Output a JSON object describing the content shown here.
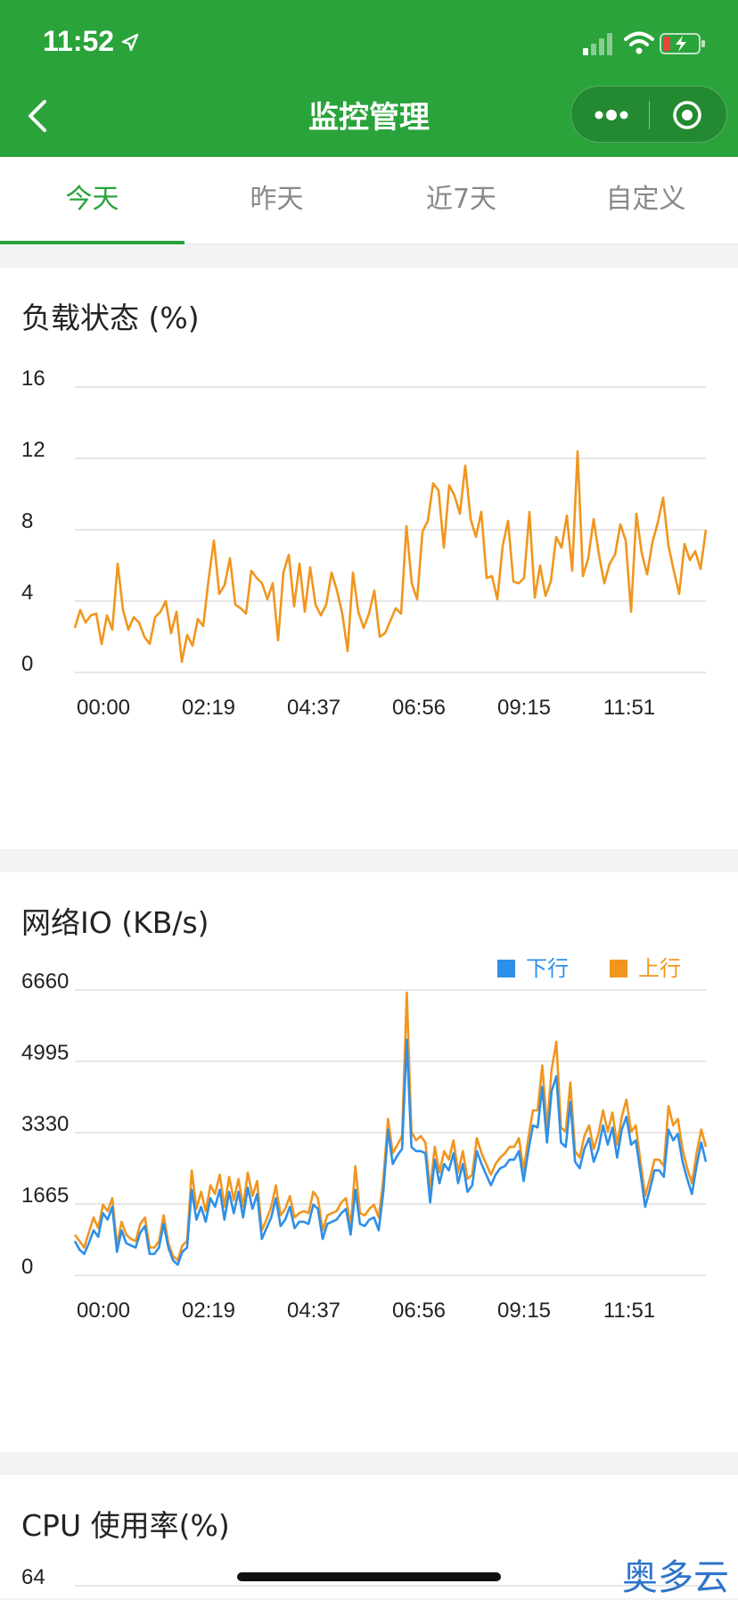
{
  "status_bar": {
    "time": "11:52"
  },
  "nav": {
    "title": "监控管理",
    "more_icon": "more-dots-icon",
    "close_icon": "target-icon"
  },
  "tabs": [
    {
      "label": "今天",
      "active": true
    },
    {
      "label": "昨天",
      "active": false
    },
    {
      "label": "近7天",
      "active": false
    },
    {
      "label": "自定义",
      "active": false
    }
  ],
  "colors": {
    "brand": "#2aa33a",
    "orange": "#f0961e",
    "blue": "#2e8fe8"
  },
  "cards": {
    "load": {
      "title": "负载状态 (%)"
    },
    "net": {
      "title": "网络IO (KB/s)",
      "legend_down": "下行",
      "legend_up": "上行"
    },
    "cpu": {
      "title": "CPU 使用率(%)"
    }
  },
  "watermark": "奥多云",
  "chart_data": [
    {
      "type": "line",
      "ylim": [
        0,
        16
      ],
      "yticks": [
        0,
        4,
        8,
        12,
        16
      ],
      "xtick_labels": [
        "00:00",
        "02:19",
        "04:37",
        "06:56",
        "09:15",
        "11:51"
      ],
      "series": [
        {
          "color": "#f0961e",
          "values": [
            2.5,
            3.5,
            2.8,
            3.2,
            3.3,
            1.6,
            3.2,
            2.4,
            6.1,
            3.5,
            2.4,
            3.1,
            2.8,
            2.0,
            1.6,
            3.1,
            3.4,
            4.0,
            2.2,
            3.4,
            0.6,
            2.1,
            1.5,
            3.0,
            2.6,
            5.2,
            7.4,
            4.4,
            4.9,
            6.4,
            3.8,
            3.6,
            3.3,
            5.7,
            5.3,
            5.0,
            4.1,
            5.0,
            1.8,
            5.6,
            6.6,
            3.7,
            6.1,
            3.4,
            5.9,
            3.8,
            3.2,
            3.8,
            5.6,
            4.6,
            3.3,
            1.2,
            5.6,
            3.4,
            2.5,
            3.3,
            4.6,
            2.0,
            2.2,
            2.9,
            3.6,
            3.3,
            8.2,
            5.0,
            4.1,
            7.9,
            8.5,
            10.6,
            10.2,
            7.0,
            10.5,
            9.9,
            8.9,
            11.6,
            8.6,
            7.6,
            9.0,
            5.3,
            5.4,
            4.1,
            7.1,
            8.5,
            5.1,
            5.0,
            5.3,
            9.0,
            4.2,
            6.0,
            4.3,
            5.1,
            7.6,
            7.0,
            8.8,
            5.7,
            12.4,
            5.4,
            6.4,
            8.6,
            6.6,
            5.0,
            6.1,
            6.6,
            8.3,
            7.4,
            3.4,
            8.9,
            6.7,
            5.5,
            7.3,
            8.4,
            9.8,
            7.1,
            5.7,
            4.4,
            7.2,
            6.3,
            6.8,
            5.8,
            8.0
          ]
        }
      ]
    },
    {
      "type": "line",
      "ylim": [
        0,
        6660
      ],
      "yticks": [
        0,
        1665,
        3330,
        4995,
        6660
      ],
      "xtick_labels": [
        "00:00",
        "02:19",
        "04:37",
        "06:56",
        "09:15",
        "11:51"
      ],
      "series": [
        {
          "name": "下行",
          "color": "#2e8fe8",
          "values": [
            800,
            600,
            500,
            750,
            1050,
            900,
            1450,
            1300,
            1600,
            550,
            1050,
            750,
            700,
            650,
            1000,
            1150,
            500,
            500,
            650,
            1200,
            650,
            350,
            250,
            550,
            650,
            2000,
            1300,
            1600,
            1250,
            1800,
            1600,
            2000,
            1300,
            1950,
            1450,
            1950,
            1350,
            2050,
            1550,
            1900,
            850,
            1100,
            1350,
            1800,
            1150,
            1300,
            1600,
            1100,
            1250,
            1250,
            1200,
            1650,
            1550,
            850,
            1200,
            1250,
            1300,
            1450,
            1550,
            950,
            2000,
            1200,
            1150,
            1300,
            1350,
            1050,
            1950,
            3400,
            2600,
            2800,
            2950,
            5500,
            3000,
            2900,
            2900,
            2850,
            1700,
            2700,
            2150,
            2600,
            2450,
            2850,
            2150,
            2600,
            1950,
            2100,
            2900,
            2600,
            2350,
            2100,
            2350,
            2500,
            2550,
            2700,
            2700,
            2900,
            2200,
            2900,
            3500,
            3450,
            4400,
            3100,
            4300,
            4650,
            3100,
            3000,
            4050,
            2650,
            2500,
            2950,
            3200,
            2650,
            2950,
            3500,
            3050,
            3450,
            2750,
            3400,
            3700,
            3050,
            3150,
            2400,
            1600,
            2000,
            2450,
            2450,
            2300,
            3400,
            3150,
            3300,
            2650,
            2250,
            1900,
            2550,
            3100,
            2650
          ]
        },
        {
          "name": "上行",
          "color": "#f0961e",
          "values": [
            950,
            800,
            650,
            1000,
            1350,
            1100,
            1650,
            1500,
            1800,
            700,
            1250,
            950,
            850,
            800,
            1200,
            1350,
            650,
            650,
            800,
            1400,
            750,
            450,
            350,
            700,
            800,
            2450,
            1550,
            1950,
            1500,
            2100,
            1900,
            2350,
            1600,
            2300,
            1750,
            2250,
            1600,
            2400,
            1850,
            2200,
            1050,
            1300,
            1600,
            2100,
            1400,
            1550,
            1850,
            1350,
            1450,
            1500,
            1450,
            1950,
            1800,
            1050,
            1400,
            1450,
            1500,
            1700,
            1800,
            1150,
            2550,
            1450,
            1400,
            1550,
            1650,
            1350,
            2250,
            3650,
            2850,
            3050,
            3250,
            6600,
            3350,
            3150,
            3250,
            3100,
            2000,
            3000,
            2400,
            2900,
            2700,
            3150,
            2400,
            2900,
            2250,
            2350,
            3200,
            2850,
            2600,
            2350,
            2600,
            2750,
            2850,
            3000,
            3000,
            3200,
            2450,
            3200,
            3850,
            3850,
            4900,
            3450,
            4800,
            5450,
            3450,
            3350,
            4500,
            2900,
            2750,
            3250,
            3500,
            2950,
            3300,
            3850,
            3350,
            3800,
            3050,
            3700,
            4100,
            3350,
            3500,
            2650,
            1850,
            2250,
            2700,
            2700,
            2550,
            3950,
            3500,
            3650,
            2950,
            2500,
            2150,
            2850,
            3400,
            3000
          ]
        }
      ]
    },
    {
      "type": "line",
      "yticks": [
        64
      ],
      "series": []
    }
  ]
}
